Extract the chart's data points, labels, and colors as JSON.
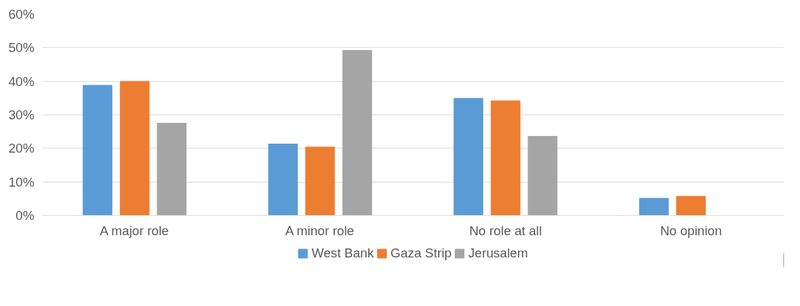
{
  "chart_data": {
    "type": "bar",
    "categories": [
      "A major role",
      "A minor role",
      "No role at all",
      "No opinion"
    ],
    "series": [
      {
        "name": "West Bank",
        "color": "#5b9bd5",
        "values": [
          38.8,
          21.3,
          34.9,
          5.1
        ]
      },
      {
        "name": "Gaza Strip",
        "color": "#ed7d31",
        "values": [
          40,
          20.4,
          34.2,
          5.7
        ]
      },
      {
        "name": "Jerusalem",
        "color": "#a5a5a5",
        "values": [
          27.5,
          49.2,
          23.6,
          0
        ]
      }
    ],
    "ylim": [
      0,
      60
    ],
    "yticks": [
      {
        "value": 0,
        "label": "0%"
      },
      {
        "value": 10,
        "label": "10%"
      },
      {
        "value": 20,
        "label": "20%"
      },
      {
        "value": 30,
        "label": "30%"
      },
      {
        "value": 40,
        "label": "40%"
      },
      {
        "value": 50,
        "label": "50%"
      },
      {
        "value": 60,
        "label": "60%"
      }
    ],
    "grid": "y",
    "legend": "bottom"
  }
}
